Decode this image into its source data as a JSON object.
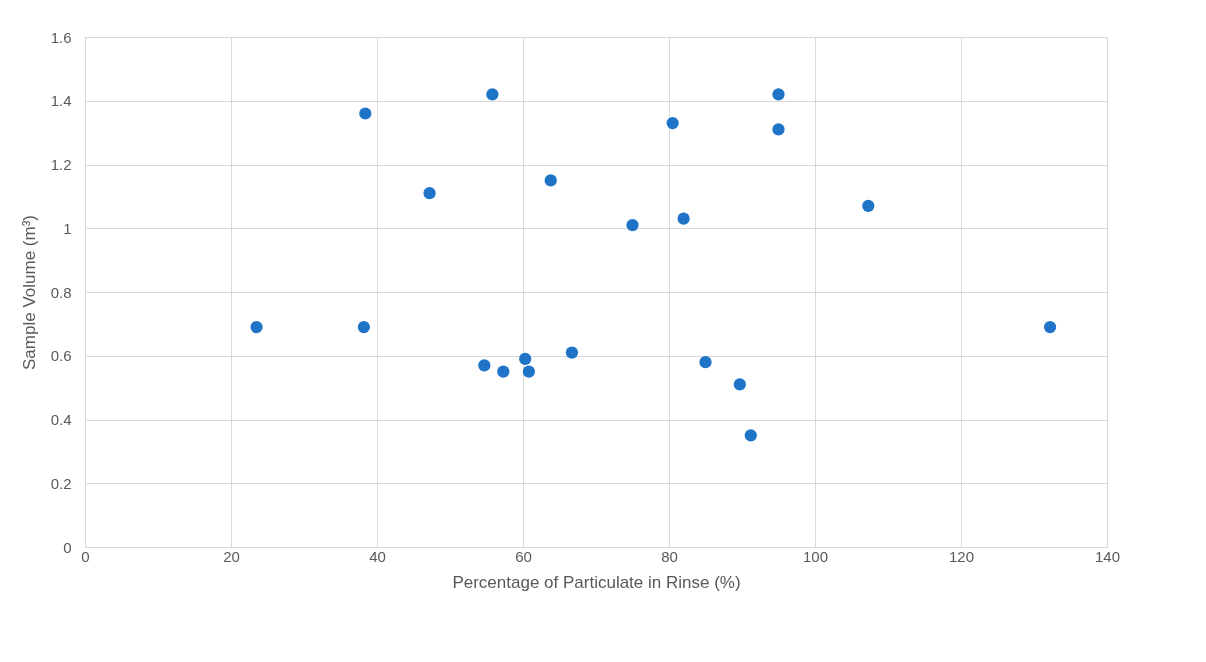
{
  "chart_data": {
    "type": "scatter",
    "xlabel": "Percentage of Particulate in Rinse (%)",
    "ylabel": "Sample Volume (m³)",
    "x": [
      23.5,
      38.2,
      38.4,
      47.2,
      54.7,
      55.8,
      57.3,
      60.3,
      60.8,
      63.8,
      66.7,
      75.0,
      80.5,
      82.0,
      85.0,
      89.7,
      91.2,
      95.0,
      95.0,
      107.3,
      132.2
    ],
    "series": [
      {
        "color": "#1f74c8",
        "values": [
          0.69,
          0.69,
          1.36,
          1.11,
          0.57,
          1.42,
          0.55,
          0.59,
          0.55,
          1.15,
          0.61,
          1.01,
          1.33,
          1.03,
          0.58,
          0.51,
          0.35,
          1.42,
          1.31,
          1.07,
          0.69
        ]
      }
    ],
    "xlim": [
      0,
      140
    ],
    "xticks": [
      0,
      20,
      40,
      60,
      80,
      100,
      120,
      140
    ],
    "ylim": [
      0,
      1.6
    ],
    "yticks": [
      0,
      0.2,
      0.4,
      0.6,
      0.8,
      1,
      1.2,
      1.4,
      1.6
    ],
    "grid": true,
    "marker": "circle"
  }
}
